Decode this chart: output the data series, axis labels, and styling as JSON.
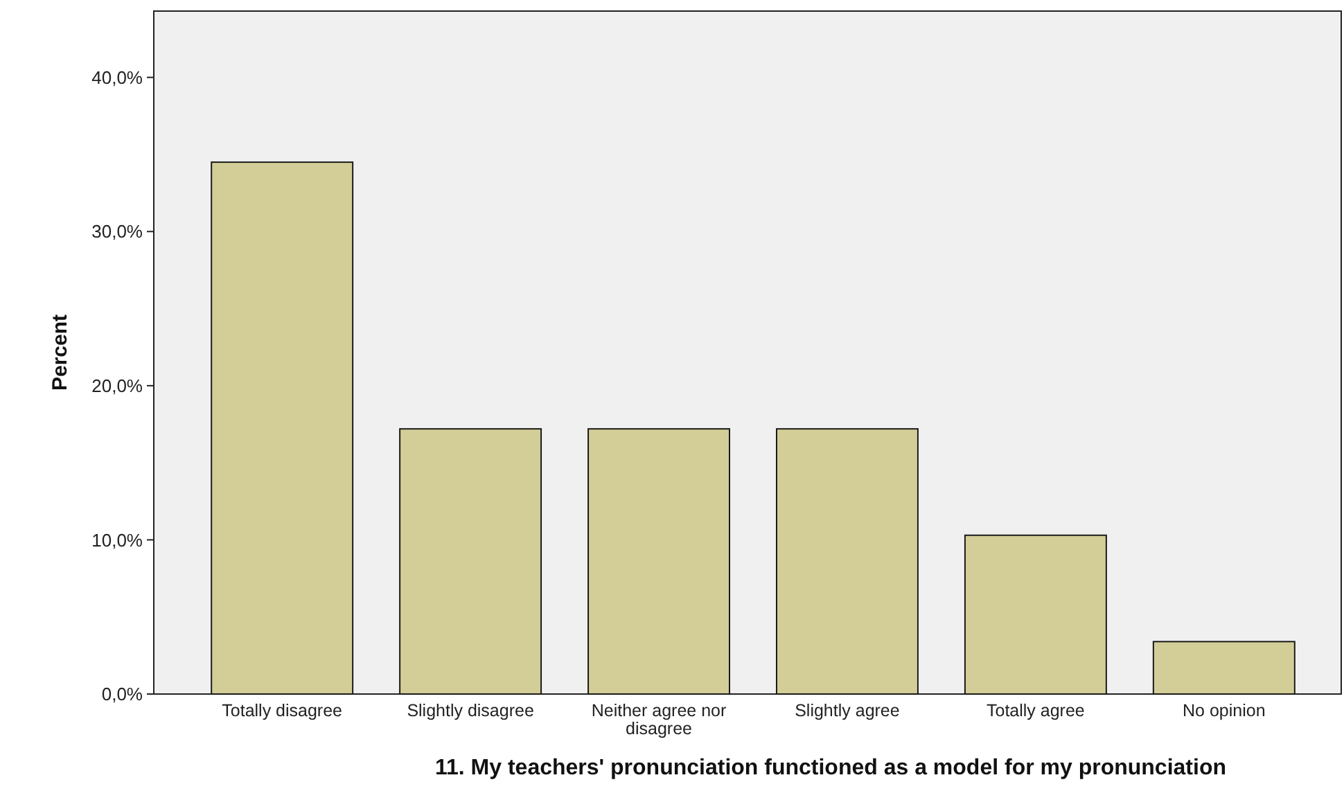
{
  "chart_data": {
    "type": "bar",
    "xlabel": "11. My teachers' pronunciation functioned as a model for my pronunciation",
    "ylabel": "Percent",
    "categories": [
      "Totally disagree",
      "Slightly disagree",
      "Neither agree nor disagree",
      "Slightly agree",
      "Totally agree",
      "No opinion"
    ],
    "values": [
      34.5,
      17.2,
      17.2,
      17.2,
      10.3,
      3.4
    ],
    "color": "#d3ce97",
    "ylim": [
      0,
      44.3
    ],
    "yticks": [
      {
        "value": 0,
        "label": "0,0%"
      },
      {
        "value": 10,
        "label": "10,0%"
      },
      {
        "value": 20,
        "label": "20,0%"
      },
      {
        "value": 30,
        "label": "30,0%"
      },
      {
        "value": 40,
        "label": "40,0%"
      }
    ],
    "grid": false
  }
}
